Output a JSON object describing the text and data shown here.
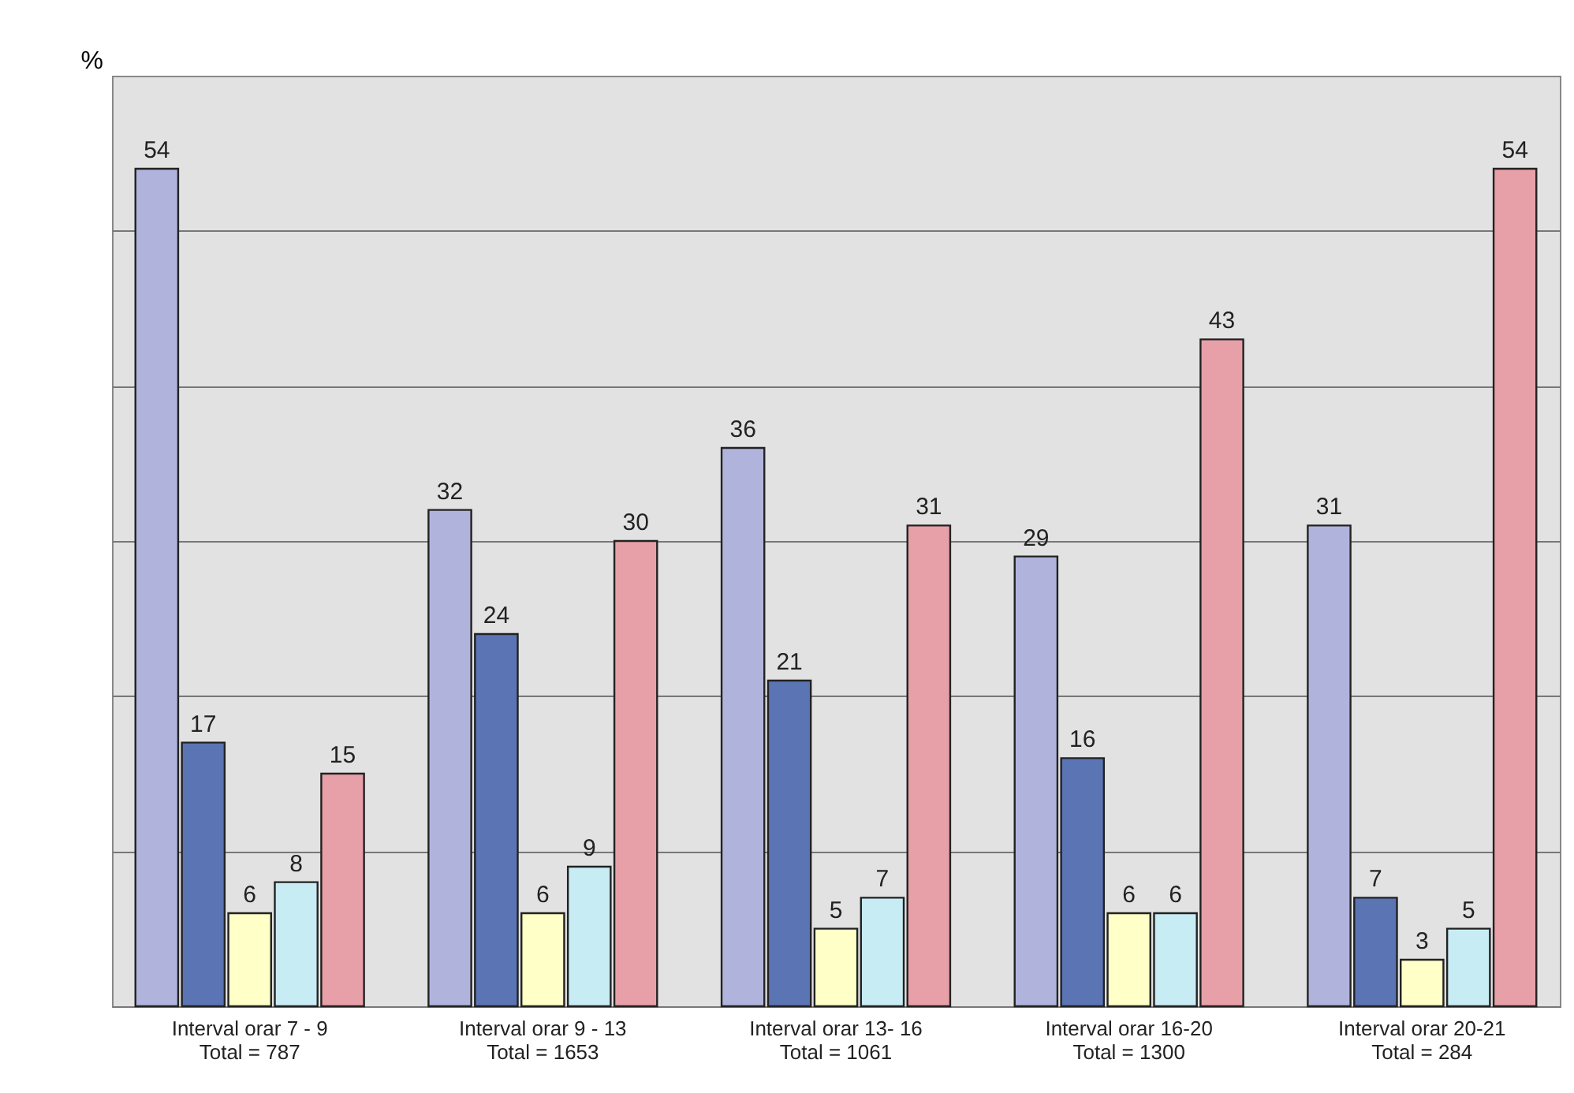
{
  "chart_data": {
    "type": "bar",
    "ylabel": "%",
    "categories": [
      "Interval orar 7 - 9\nTotal = 787",
      "Interval orar 9 - 13\nTotal =  1653",
      "Interval orar 13- 16\nTotal = 1061",
      "Interval orar 16-20\nTotal = 1300",
      "Interval orar 20-21\nTotal =  284"
    ],
    "series": [
      {
        "color": "#b0b4dc",
        "values": [
          54,
          32,
          36,
          29,
          31
        ]
      },
      {
        "color": "#5a74b4",
        "values": [
          17,
          24,
          21,
          16,
          7
        ]
      },
      {
        "color": "#ffffc8",
        "values": [
          6,
          6,
          5,
          6,
          3
        ]
      },
      {
        "color": "#c8ecf4",
        "values": [
          8,
          9,
          7,
          6,
          5
        ]
      },
      {
        "color": "#e8a0a8",
        "values": [
          15,
          30,
          31,
          43,
          54
        ]
      }
    ],
    "ylim": [
      0,
      60
    ],
    "yticks": [
      {
        "value": 0,
        "label": null
      },
      {
        "value": 10,
        "label": null
      },
      {
        "value": 20,
        "label": null
      },
      {
        "value": 30,
        "label": null
      },
      {
        "value": 40,
        "label": null
      },
      {
        "value": 50,
        "label": null
      }
    ],
    "grid": "y",
    "tick_labels": "x",
    "data_labels": true,
    "legend": false
  }
}
